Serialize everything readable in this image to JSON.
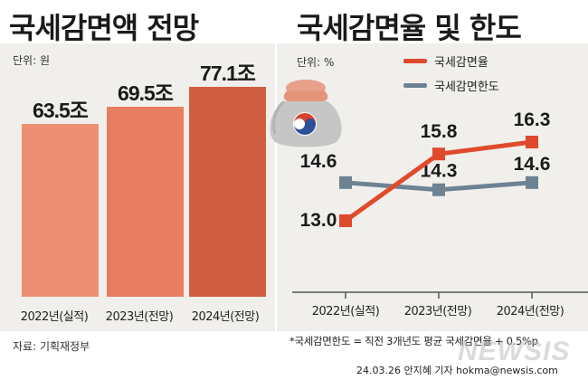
{
  "left_chart": {
    "title": "국세감면액 전망",
    "unit": "단위: 원",
    "source": "자료: 기획재정부"
  },
  "right_chart": {
    "title": "국세감면율 및 한도",
    "unit": "단위: %",
    "footnote": "*국세감면한도 = 직전 3개년도 평균 국세감면율 + 0.5%p"
  },
  "byline": "24.03.26 안지혜 기자  hokma@newsis.com",
  "watermark": "NEWSIS",
  "icon": "money-bag-icon",
  "chart_data": [
    {
      "type": "bar",
      "title": "국세감면액 전망",
      "unit": "단위: 원",
      "categories": [
        "2022년(실적)",
        "2023년(전망)",
        "2024년(전망)"
      ],
      "values": [
        63.5,
        69.5,
        77.1
      ],
      "value_labels": [
        "63.5조",
        "69.5조",
        "77.1조"
      ],
      "colors": [
        "#ee8f74",
        "#e87e61",
        "#cf5f40"
      ],
      "ylim": [
        0,
        80
      ]
    },
    {
      "type": "line",
      "title": "국세감면율 및 한도",
      "unit": "단위: %",
      "categories": [
        "2022년(실적)",
        "2023년(전망)",
        "2024년(전망)"
      ],
      "series": [
        {
          "name": "국세감면율",
          "values": [
            13.0,
            15.8,
            16.3
          ],
          "labels": [
            "13.0",
            "15.8",
            "16.3"
          ],
          "color": "#e04a2c"
        },
        {
          "name": "국세감면한도",
          "values": [
            14.6,
            14.3,
            14.6
          ],
          "labels": [
            "14.6",
            "14.3",
            "14.6"
          ],
          "color": "#6d8293"
        }
      ],
      "ylim": [
        11,
        19
      ],
      "legend": "top-right"
    }
  ]
}
